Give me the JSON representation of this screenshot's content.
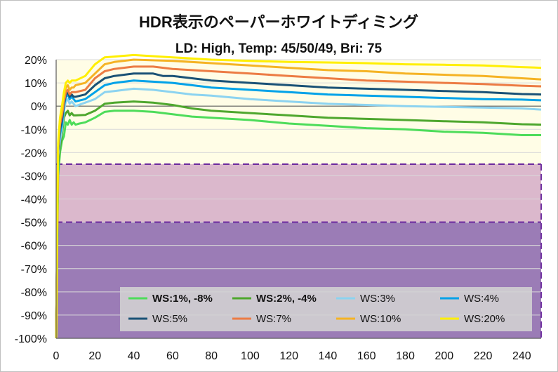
{
  "chart_data": {
    "type": "line",
    "title": "HDR表示のペーパーホワイトディミング",
    "subtitle": "LD: High, Temp: 45/50/49, Bri: 75",
    "xlabel": "",
    "ylabel": "",
    "xlim": [
      0,
      250
    ],
    "ylim": [
      -100,
      20
    ],
    "x_ticks": [
      0,
      20,
      40,
      60,
      80,
      100,
      120,
      140,
      160,
      180,
      200,
      220,
      240
    ],
    "y_ticks": [
      20,
      10,
      0,
      -10,
      -20,
      -30,
      -40,
      -50,
      -60,
      -70,
      -80,
      -90,
      -100
    ],
    "y_tick_labels": [
      "20%",
      "10%",
      "0%",
      "-10%",
      "-20%",
      "-30%",
      "-40%",
      "-50%",
      "-60%",
      "-70%",
      "-80%",
      "-90%",
      "-100%"
    ],
    "x_tick_labels": [
      "0",
      "20",
      "40",
      "60",
      "80",
      "100",
      "120",
      "140",
      "160",
      "180",
      "200",
      "220",
      "240"
    ],
    "zones": [
      {
        "name": "ok-zone",
        "from": -25,
        "to": 20,
        "color": "#fffde6"
      },
      {
        "name": "warn-zone",
        "from": -50,
        "to": -25,
        "color": "#dbb8cc"
      },
      {
        "name": "bad-zone",
        "from": -100,
        "to": -50,
        "color": "#9b7cb6"
      }
    ],
    "thresholds": [
      -25,
      -50
    ],
    "threshold_color": "#7030a0",
    "legend_position": "bottom-right",
    "series": [
      {
        "name": "WS:1%, -8%",
        "color": "#4ddc5a",
        "bold": true,
        "points": [
          [
            0,
            -100
          ],
          [
            1,
            -30
          ],
          [
            2,
            -20
          ],
          [
            3,
            -15
          ],
          [
            4,
            -13
          ],
          [
            5,
            -7
          ],
          [
            6,
            -8
          ],
          [
            7,
            -6
          ],
          [
            8,
            -8
          ],
          [
            9,
            -7
          ],
          [
            10,
            -8
          ],
          [
            12,
            -7.5
          ],
          [
            15,
            -7
          ],
          [
            20,
            -5
          ],
          [
            25,
            -2.5
          ],
          [
            30,
            -2
          ],
          [
            40,
            -2
          ],
          [
            50,
            -2.5
          ],
          [
            60,
            -3.5
          ],
          [
            70,
            -4.5
          ],
          [
            80,
            -5
          ],
          [
            100,
            -6
          ],
          [
            120,
            -7.5
          ],
          [
            140,
            -8.5
          ],
          [
            160,
            -9.5
          ],
          [
            180,
            -10
          ],
          [
            200,
            -11
          ],
          [
            220,
            -11.5
          ],
          [
            240,
            -12.5
          ],
          [
            250,
            -12.5
          ]
        ]
      },
      {
        "name": "WS:2%, -4%",
        "color": "#4ea72e",
        "bold": true,
        "points": [
          [
            0,
            -100
          ],
          [
            1,
            -25
          ],
          [
            2,
            -18
          ],
          [
            3,
            -12
          ],
          [
            4,
            -5
          ],
          [
            5,
            -3
          ],
          [
            6,
            -2
          ],
          [
            7,
            -4
          ],
          [
            8,
            -3
          ],
          [
            9,
            -4
          ],
          [
            10,
            -4
          ],
          [
            15,
            -3.8
          ],
          [
            20,
            -2
          ],
          [
            25,
            1
          ],
          [
            30,
            1.5
          ],
          [
            40,
            2
          ],
          [
            50,
            1.5
          ],
          [
            55,
            1
          ],
          [
            60,
            0.5
          ],
          [
            70,
            -1
          ],
          [
            80,
            -2
          ],
          [
            100,
            -3
          ],
          [
            120,
            -4
          ],
          [
            140,
            -5
          ],
          [
            160,
            -5.5
          ],
          [
            180,
            -6
          ],
          [
            200,
            -6.5
          ],
          [
            220,
            -7
          ],
          [
            240,
            -7.8
          ],
          [
            250,
            -8
          ]
        ]
      },
      {
        "name": "WS:3%",
        "color": "#8cd3f0",
        "bold": false,
        "points": [
          [
            0,
            -100
          ],
          [
            1,
            -22
          ],
          [
            2,
            -15
          ],
          [
            3,
            -10
          ],
          [
            4,
            -2
          ],
          [
            5,
            2
          ],
          [
            6,
            3
          ],
          [
            7,
            1
          ],
          [
            8,
            2
          ],
          [
            9,
            1
          ],
          [
            10,
            0
          ],
          [
            15,
            1.5
          ],
          [
            20,
            3
          ],
          [
            25,
            6
          ],
          [
            30,
            6.5
          ],
          [
            40,
            7.5
          ],
          [
            50,
            7
          ],
          [
            60,
            6
          ],
          [
            70,
            5
          ],
          [
            80,
            4.5
          ],
          [
            100,
            3
          ],
          [
            120,
            2
          ],
          [
            140,
            1
          ],
          [
            160,
            0.5
          ],
          [
            180,
            0
          ],
          [
            200,
            -0.3
          ],
          [
            220,
            -0.6
          ],
          [
            240,
            -1
          ],
          [
            250,
            -1.5
          ]
        ]
      },
      {
        "name": "WS:4%",
        "color": "#00a2e8",
        "bold": false,
        "points": [
          [
            0,
            -100
          ],
          [
            1,
            -20
          ],
          [
            2,
            -12
          ],
          [
            3,
            -8
          ],
          [
            4,
            0
          ],
          [
            5,
            4
          ],
          [
            6,
            5
          ],
          [
            7,
            3
          ],
          [
            8,
            4
          ],
          [
            9,
            3
          ],
          [
            10,
            2
          ],
          [
            15,
            3
          ],
          [
            20,
            6
          ],
          [
            25,
            9
          ],
          [
            30,
            10
          ],
          [
            40,
            11
          ],
          [
            50,
            10.5
          ],
          [
            60,
            10
          ],
          [
            70,
            9
          ],
          [
            80,
            8
          ],
          [
            100,
            7
          ],
          [
            120,
            6
          ],
          [
            140,
            5
          ],
          [
            160,
            4.5
          ],
          [
            180,
            4
          ],
          [
            200,
            3.5
          ],
          [
            220,
            3
          ],
          [
            240,
            2.8
          ],
          [
            250,
            2.5
          ]
        ]
      },
      {
        "name": "WS:5%",
        "color": "#1a5276",
        "bold": false,
        "points": [
          [
            0,
            -100
          ],
          [
            1,
            -20
          ],
          [
            2,
            -10
          ],
          [
            3,
            -6
          ],
          [
            4,
            1
          ],
          [
            5,
            5
          ],
          [
            6,
            6
          ],
          [
            7,
            4
          ],
          [
            8,
            5
          ],
          [
            9,
            4
          ],
          [
            10,
            4
          ],
          [
            15,
            5
          ],
          [
            20,
            9
          ],
          [
            25,
            12
          ],
          [
            30,
            13
          ],
          [
            40,
            14
          ],
          [
            50,
            14
          ],
          [
            55,
            13
          ],
          [
            60,
            13
          ],
          [
            70,
            12
          ],
          [
            80,
            11
          ],
          [
            100,
            10
          ],
          [
            120,
            9
          ],
          [
            140,
            8
          ],
          [
            160,
            7.5
          ],
          [
            180,
            7
          ],
          [
            200,
            6.5
          ],
          [
            220,
            6
          ],
          [
            240,
            5.2
          ],
          [
            250,
            5
          ]
        ]
      },
      {
        "name": "WS:7%",
        "color": "#ec7c44",
        "bold": false,
        "points": [
          [
            0,
            -100
          ],
          [
            1,
            -18
          ],
          [
            2,
            -8
          ],
          [
            3,
            -4
          ],
          [
            4,
            2
          ],
          [
            5,
            6
          ],
          [
            6,
            7
          ],
          [
            7,
            5
          ],
          [
            8,
            6
          ],
          [
            9,
            6
          ],
          [
            10,
            6
          ],
          [
            15,
            7
          ],
          [
            20,
            12
          ],
          [
            25,
            15
          ],
          [
            30,
            16
          ],
          [
            40,
            17
          ],
          [
            50,
            17
          ],
          [
            60,
            16
          ],
          [
            70,
            15.5
          ],
          [
            80,
            15
          ],
          [
            100,
            14
          ],
          [
            120,
            13
          ],
          [
            140,
            12
          ],
          [
            160,
            11
          ],
          [
            180,
            10.5
          ],
          [
            200,
            10
          ],
          [
            220,
            9.5
          ],
          [
            240,
            8.8
          ],
          [
            250,
            8.5
          ]
        ]
      },
      {
        "name": "WS:10%",
        "color": "#f5b324",
        "bold": false,
        "points": [
          [
            0,
            -100
          ],
          [
            1,
            -18
          ],
          [
            2,
            -6
          ],
          [
            3,
            -3
          ],
          [
            4,
            4
          ],
          [
            5,
            8
          ],
          [
            6,
            9
          ],
          [
            7,
            7
          ],
          [
            8,
            8
          ],
          [
            9,
            8
          ],
          [
            10,
            9
          ],
          [
            15,
            10
          ],
          [
            20,
            14
          ],
          [
            25,
            18
          ],
          [
            30,
            19
          ],
          [
            40,
            20
          ],
          [
            60,
            19.5
          ],
          [
            80,
            18.5
          ],
          [
            100,
            17.5
          ],
          [
            120,
            16.5
          ],
          [
            140,
            15.5
          ],
          [
            160,
            15
          ],
          [
            180,
            14
          ],
          [
            200,
            13.5
          ],
          [
            220,
            13
          ],
          [
            240,
            12
          ],
          [
            250,
            11.5
          ]
        ]
      },
      {
        "name": "WS:20%",
        "color": "#ffef00",
        "bold": false,
        "points": [
          [
            0,
            -100
          ],
          [
            1,
            -16
          ],
          [
            2,
            -5
          ],
          [
            3,
            0
          ],
          [
            4,
            6
          ],
          [
            5,
            10
          ],
          [
            6,
            11
          ],
          [
            7,
            10
          ],
          [
            8,
            11
          ],
          [
            9,
            11
          ],
          [
            10,
            11
          ],
          [
            15,
            13
          ],
          [
            20,
            18
          ],
          [
            25,
            21
          ],
          [
            40,
            22
          ],
          [
            60,
            21
          ],
          [
            80,
            20
          ],
          [
            100,
            19.5
          ],
          [
            120,
            19
          ],
          [
            140,
            18.8
          ],
          [
            160,
            18.5
          ],
          [
            180,
            18
          ],
          [
            200,
            17.8
          ],
          [
            220,
            17.5
          ],
          [
            240,
            16.8
          ],
          [
            250,
            16.5
          ]
        ]
      }
    ]
  }
}
